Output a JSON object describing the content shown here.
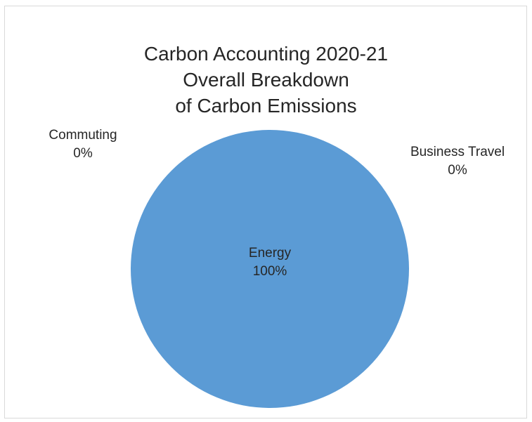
{
  "chart_data": {
    "type": "pie",
    "title_lines": [
      "Carbon Accounting 2020-21",
      "Overall Breakdown",
      "of Carbon Emissions"
    ],
    "slices": [
      {
        "name": "Energy",
        "percent_label": "100%",
        "value": 100,
        "color": "#5b9bd5"
      },
      {
        "name": "Commuting",
        "percent_label": "0%",
        "value": 0,
        "color": "#ed7d31"
      },
      {
        "name": "Business Travel",
        "percent_label": "0%",
        "value": 0,
        "color": "#a5a5a5"
      }
    ],
    "legend": "none"
  }
}
